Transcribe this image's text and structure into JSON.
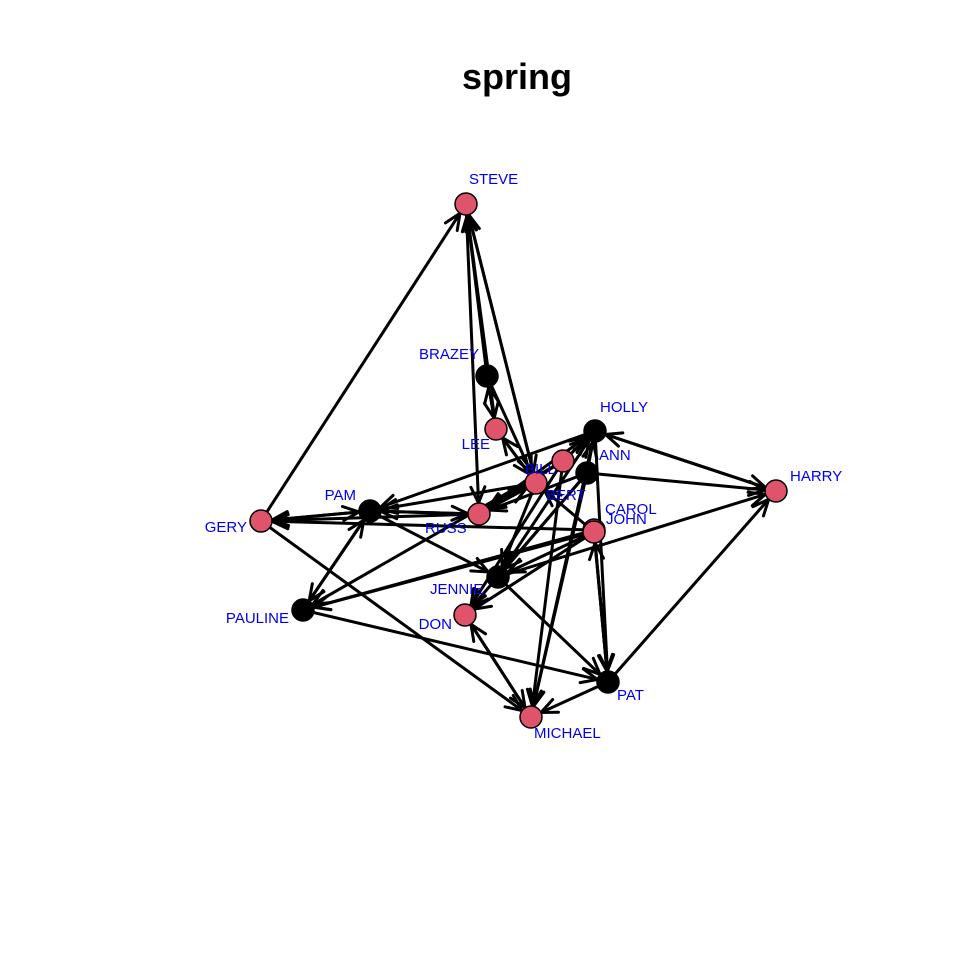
{
  "title": "spring",
  "colors": {
    "red": "#df536b",
    "black": "#000000",
    "label": "#0000ee",
    "edge": "#000000"
  },
  "nodes": [
    {
      "id": "STEVE",
      "label": "STEVE",
      "color": "#df536b"
    },
    {
      "id": "BRAZEY",
      "label": "BRAZEY",
      "color": "#000000"
    },
    {
      "id": "LEE",
      "label": "LEE",
      "color": "#df536b"
    },
    {
      "id": "BILL",
      "label": "BILL",
      "color": "#df536b"
    },
    {
      "id": "HOLLY",
      "label": "HOLLY",
      "color": "#000000"
    },
    {
      "id": "ANN",
      "label": "ANN",
      "color": "#000000"
    },
    {
      "id": "HARRY",
      "label": "HARRY",
      "color": "#df536b"
    },
    {
      "id": "BERT",
      "label": "BERT",
      "color": "#df536b"
    },
    {
      "id": "PAM",
      "label": "PAM",
      "color": "#000000"
    },
    {
      "id": "GERY",
      "label": "GERY",
      "color": "#df536b"
    },
    {
      "id": "RUSS",
      "label": "RUSS",
      "color": "#df536b"
    },
    {
      "id": "CAROL",
      "label": "CAROL",
      "color": "#df536b"
    },
    {
      "id": "JOHN",
      "label": "JOHN",
      "color": "#df536b"
    },
    {
      "id": "JENNIE",
      "label": "JENNIE",
      "color": "#000000"
    },
    {
      "id": "PAULINE",
      "label": "PAULINE",
      "color": "#000000"
    },
    {
      "id": "DON",
      "label": "DON",
      "color": "#df536b"
    },
    {
      "id": "PAT",
      "label": "PAT",
      "color": "#000000"
    },
    {
      "id": "MICHAEL",
      "label": "MICHAEL",
      "color": "#df536b"
    }
  ],
  "edges": [
    [
      "GERY",
      "STEVE"
    ],
    [
      "BRAZEY",
      "STEVE"
    ],
    [
      "LEE",
      "STEVE"
    ],
    [
      "BERT",
      "STEVE"
    ],
    [
      "STEVE",
      "BERT"
    ],
    [
      "STEVE",
      "RUSS"
    ],
    [
      "BRAZEY",
      "LEE"
    ],
    [
      "LEE",
      "BRAZEY"
    ],
    [
      "BRAZEY",
      "BERT"
    ],
    [
      "LEE",
      "BERT"
    ],
    [
      "BERT",
      "LEE"
    ],
    [
      "BERT",
      "PAM"
    ],
    [
      "BERT",
      "RUSS"
    ],
    [
      "RUSS",
      "BERT"
    ],
    [
      "BILL",
      "RUSS"
    ],
    [
      "ANN",
      "RUSS"
    ],
    [
      "PAM",
      "GERY"
    ],
    [
      "GERY",
      "PAM"
    ],
    [
      "RUSS",
      "GERY"
    ],
    [
      "CAROL",
      "GERY"
    ],
    [
      "RUSS",
      "PAM"
    ],
    [
      "PAM",
      "RUSS"
    ],
    [
      "HOLLY",
      "PAM"
    ],
    [
      "PAM",
      "JENNIE"
    ],
    [
      "PAM",
      "PAULINE"
    ],
    [
      "PAULINE",
      "PAM"
    ],
    [
      "HOLLY",
      "HARRY"
    ],
    [
      "HARRY",
      "HOLLY"
    ],
    [
      "ANN",
      "HARRY"
    ],
    [
      "JENNIE",
      "HARRY"
    ],
    [
      "PAT",
      "HARRY"
    ],
    [
      "ANN",
      "HOLLY"
    ],
    [
      "BILL",
      "HOLLY"
    ],
    [
      "JENNIE",
      "HOLLY"
    ],
    [
      "RUSS",
      "HOLLY"
    ],
    [
      "HOLLY",
      "PAT"
    ],
    [
      "HOLLY",
      "MICHAEL"
    ],
    [
      "ANN",
      "JENNIE"
    ],
    [
      "JOHN",
      "JENNIE"
    ],
    [
      "BERT",
      "JENNIE"
    ],
    [
      "BILL",
      "DON"
    ],
    [
      "ANN",
      "DON"
    ],
    [
      "JOHN",
      "DON"
    ],
    [
      "JOHN",
      "PAULINE"
    ],
    [
      "CAROL",
      "PAULINE"
    ],
    [
      "BILL",
      "PAULINE"
    ],
    [
      "JOHN",
      "BERT"
    ],
    [
      "JOHN",
      "PAT"
    ],
    [
      "PAT",
      "JOHN"
    ],
    [
      "CAROL",
      "PAT"
    ],
    [
      "JENNIE",
      "PAT"
    ],
    [
      "PAULINE",
      "PAT"
    ],
    [
      "GERY",
      "MICHAEL"
    ],
    [
      "DON",
      "MICHAEL"
    ],
    [
      "MICHAEL",
      "DON"
    ],
    [
      "ANN",
      "MICHAEL"
    ],
    [
      "PAT",
      "MICHAEL"
    ],
    [
      "BILL",
      "MICHAEL"
    ]
  ]
}
